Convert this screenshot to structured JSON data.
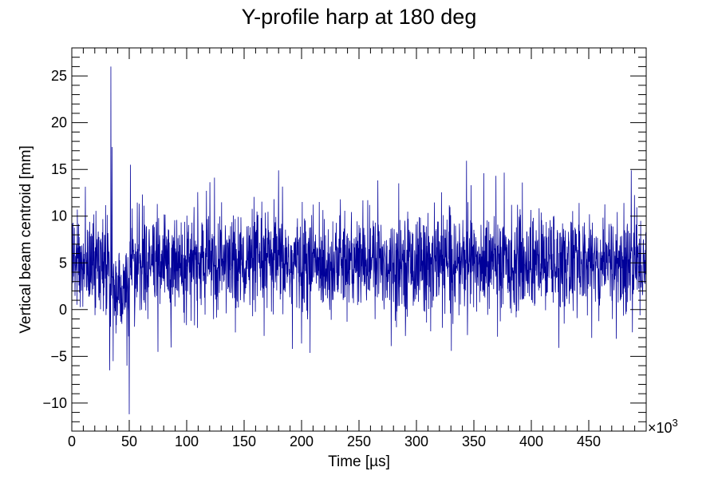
{
  "chart_data": {
    "type": "line",
    "title": "Y-profile harp at 180 deg",
    "xlabel": "Time [µs]",
    "ylabel": "Vertical beam centroid [mm]",
    "x_multiplier_label": "×10",
    "x_multiplier_exponent": "3",
    "xlim": [
      0,
      500
    ],
    "ylim": [
      -13,
      28
    ],
    "x_ticks": [
      0,
      50,
      100,
      150,
      200,
      250,
      300,
      350,
      400,
      450
    ],
    "x_tick_labels": [
      "0",
      "50",
      "100",
      "150",
      "200",
      "250",
      "300",
      "350",
      "400",
      "450"
    ],
    "y_ticks": [
      -10,
      -5,
      0,
      5,
      10,
      15,
      20,
      25
    ],
    "y_tick_labels": [
      "−10",
      "−5",
      "0",
      "5",
      "10",
      "15",
      "20",
      "25"
    ],
    "grid": false,
    "series": [
      {
        "color": "#000099",
        "baseline_mean": 5,
        "noise_sd": 2.6,
        "features": [
          {
            "x": 34,
            "y": 26.0
          },
          {
            "x": 35,
            "y": 17.4
          },
          {
            "x": 33,
            "y": -6.5
          },
          {
            "x": 51,
            "y": 15.5
          },
          {
            "x": 50,
            "y": -11.2
          },
          {
            "x": 48,
            "y": -6.0
          },
          {
            "x": 180,
            "y": 14.9
          },
          {
            "x": 192,
            "y": -4.2
          },
          {
            "x": 278,
            "y": -3.9
          },
          {
            "x": 424,
            "y": -4.1
          },
          {
            "x": 487,
            "y": 14.9
          }
        ]
      }
    ]
  }
}
